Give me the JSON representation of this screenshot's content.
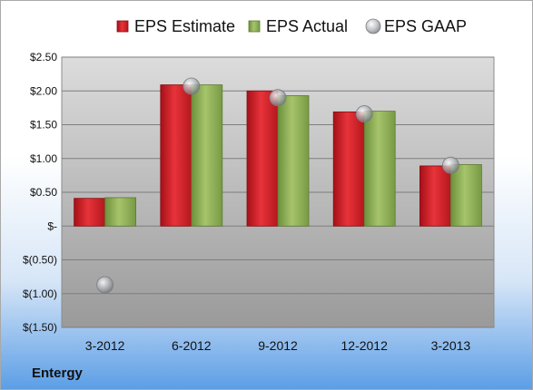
{
  "company": "Entergy",
  "chart_data": {
    "type": "bar",
    "categories": [
      "3-2012",
      "6-2012",
      "9-2012",
      "12-2012",
      "3-2013"
    ],
    "series": [
      {
        "name": "EPS Estimate",
        "kind": "bar",
        "color": "#d9232a",
        "values": [
          0.41,
          2.09,
          2.0,
          1.69,
          0.89
        ]
      },
      {
        "name": "EPS Actual",
        "kind": "bar",
        "color": "#8fb25a",
        "values": [
          0.42,
          2.09,
          1.93,
          1.7,
          0.91
        ]
      },
      {
        "name": "EPS GAAP",
        "kind": "scatter",
        "color": "#b8bcc2",
        "values": [
          -0.87,
          2.07,
          1.9,
          1.66,
          0.9
        ]
      }
    ],
    "ylim": [
      -1.5,
      2.5
    ],
    "yticks": [
      2.5,
      2.0,
      1.5,
      1.0,
      0.5,
      0,
      -0.5,
      -1.0,
      -1.5
    ],
    "ytick_labels": [
      "$2.50",
      "$2.00",
      "$1.50",
      "$1.00",
      "$0.50",
      "$-",
      "$(0.50)",
      "$(1.00)",
      "$(1.50)"
    ],
    "legend_position": "top",
    "grid": true,
    "plot_area_color": "#c0c0c0"
  }
}
